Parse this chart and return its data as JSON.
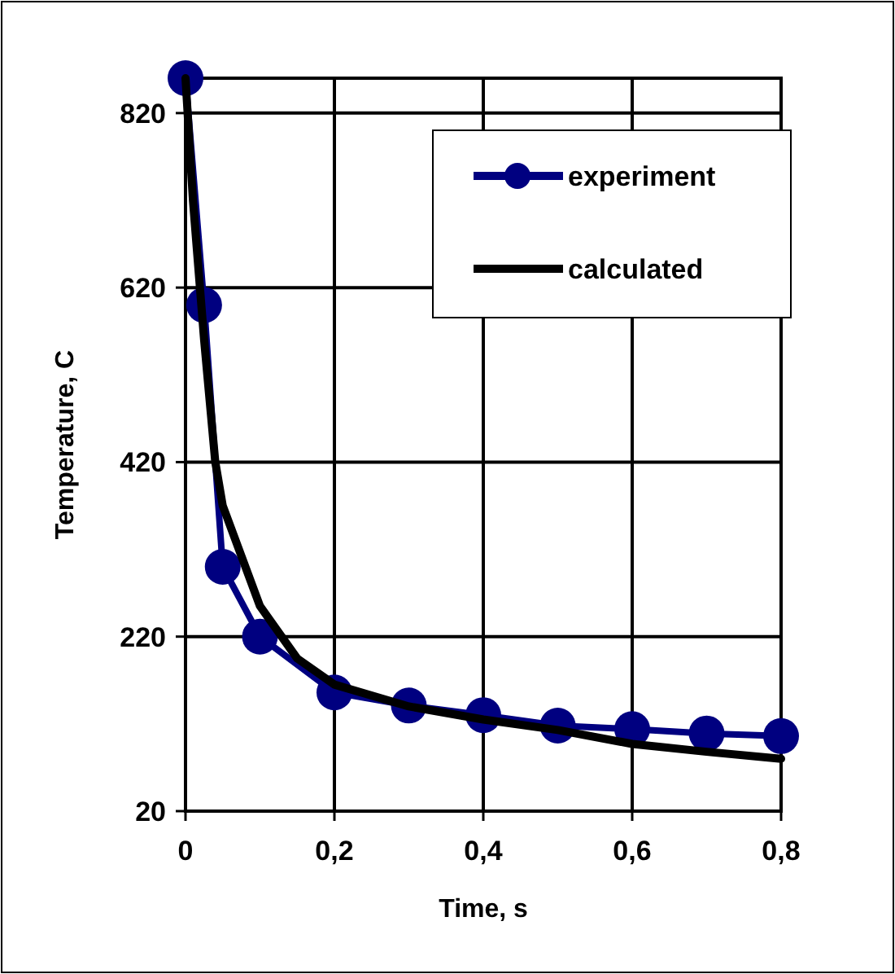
{
  "chart_data": {
    "type": "line",
    "xlabel": "Time, s",
    "ylabel": "Temperature, C",
    "xlim": [
      0,
      0.8
    ],
    "xticks": [
      {
        "value": 0,
        "label": "0"
      },
      {
        "value": 0.2,
        "label": "0,2"
      },
      {
        "value": 0.4,
        "label": "0,4"
      },
      {
        "value": 0.6,
        "label": "0,6"
      },
      {
        "value": 0.8,
        "label": "0,8"
      }
    ],
    "ylim": [
      20,
      860
    ],
    "yticks": [
      20,
      220,
      420,
      620,
      820
    ],
    "grid": true,
    "legend": "top right",
    "series": [
      {
        "name": "experiment",
        "color": "#000080",
        "marker": "circle",
        "x": [
          0,
          0.025,
          0.05,
          0.1,
          0.2,
          0.3,
          0.4,
          0.5,
          0.6,
          0.7,
          0.8
        ],
        "values": [
          860,
          600,
          300,
          220,
          156,
          141,
          130,
          118,
          114,
          109,
          106
        ]
      },
      {
        "name": "calculated",
        "color": "#000000",
        "marker": "none",
        "x": [
          0,
          0.01,
          0.025,
          0.04,
          0.05,
          0.1,
          0.15,
          0.2,
          0.3,
          0.4,
          0.5,
          0.6,
          0.7,
          0.8
        ],
        "values": [
          860,
          720,
          560,
          420,
          370,
          255,
          195,
          165,
          140,
          125,
          113,
          97,
          88,
          80
        ]
      }
    ]
  }
}
